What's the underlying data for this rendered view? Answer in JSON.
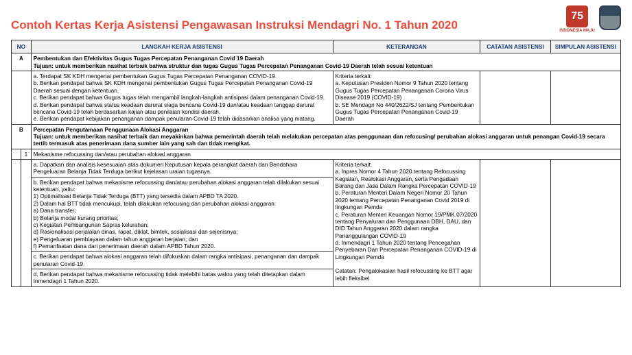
{
  "title": "Contoh Kertas Kerja Asistensi Pengawasan Instruksi Mendagri No. 1 Tahun 2020",
  "logo1_num": "75",
  "logo1_label": "INDONESIA MAJU",
  "headers": {
    "no": "NO",
    "langkah": "LANGKAH KERJA ASISTENSI",
    "keterangan": "KETERANGAN",
    "catatan": "CATATAN ASISTENSI",
    "simpulan": "SIMPULAN ASISTENSI"
  },
  "secA": {
    "no": "A",
    "title": "Pembentukan dan Efektivitas Gugus Tugas Percepatan Penanganan Covid 19 Daerah",
    "tujuan": "Tujuan: untuk memberikan nasihat terbaik bahwa struktur dan tugas Gugus Tugas Percepatan Penanganan Covid-19 Daerah telah sesuai ketentuan",
    "body_a": "a. Terdapat SK KDH mengenai pembentukan Gugus Tugas Percepatan Penanganan COVID-19.",
    "body_b": "b. Berikan pendapat bahwa SK KDH mengenai pembentukan Gugus Tugas Percepatan Penanganan Covid-19 Daerah sesuai dengan ketentuan.",
    "body_c": "c. Berikan pendapat bahwa Gugus tugas telah mengambil langkah-langkah antisipasi dalam penanganan Covid-19.",
    "body_d": "d. Berikan pendapat bahwa status keadaan darurat siaga bencana Covid-19 dan/atau keadaan tanggap darurat bencana Covid-19 telah berdasarkan kajian atau penilaian kondisi daerah.",
    "body_e": "e. Berikan pendapat kebijakan penanganan dampak penularan Covid-19 telah didasarkan analisa yang matang.",
    "ket_title": "Kriteria terkait:",
    "ket_a": "a. Keputusan Presiden Nomor 9 Tahun 2020 tentang Gugus Tugas Percepatan Penanganan Corona Virus Disease 2019 (COVID-19)",
    "ket_b": "b. SE Mendagri No 440/2622/SJ tentang Pembentukan Gugus Tugas Percepatan Penanganan Covid-19 Daerah"
  },
  "secB": {
    "no": "B",
    "title": "Percepatan Pengutamaan Penggunaan Alokasi Anggaran",
    "tujuan": "Tujuan: untuk memberikan nasihat terbaik dan meyakinkan bahwa pemerintah daerah telah melakukan percepatan atas penggunaan dan refocusing/ perubahan alokasi anggaran untuk penangan Covid-19 secara tertib termasuk atas penerimaan dana sumber lain yang sah dan tidak mengikat."
  },
  "row1": {
    "num": "1",
    "title": "Mekanisme refocussing dan/atau perubahan alokasi anggaran",
    "a": "a. Dapatkan dan analisis kesesuaian atas dokumen Keputusan kepala perangkat daerah dan Bendahara Pengeluaran Belanja Tidak Terduga berikut kejelasan uraian tugasnya.",
    "b_head": "b. Berikan pendapat bahwa mekanisme refocussing dan/atau perubahan alokasi anggaran telah dilakukan sesuai ketentuan, yaitu:",
    "b1": "1) Optimalisasi Belanja Tidak Terduga (BTT) yang tersedia dalam APBD TA 2020.",
    "b2": "2) Dalam hal BTT tidak mencukupi, telah dilakukan refocusing dan perubahan alokasi anggaran:",
    "ba": "a) Dana transfer;",
    "bb": "b) Belanja modal kurang prioritas;",
    "bc": "c) Kegiatan Pembangunan Sapras kelurahan;",
    "bd": "d) Rasionalisasi perjalalan dinas, rapat, diklat, bimtek, sosialisasi dan sejenisnya;",
    "be": "e) Pengeluaran pembiayaan dalam tahun anggaran berjalan; dan",
    "bf": "f) Pemanfaatan dana dari penerimaan daerah dalam APBD Tahun 2020.",
    "c": "c. Berikan pendapat bahwa alokasi anggaran telah difokuskan dalam rangka antisipasi, penanganan dan dampak penularan Covid-19.",
    "d": "d. Berikan pendapat bahwa mekanisme refocussing tidak melebihi batas waktu yang telah ditetapkan dalam Inmendagri 1 Tahun 2020.",
    "ket_title": "Kriteria terkait:",
    "ket_a": "a. Inpres Nomor 4 Tahun 2020 tentang Refocussing Kegiatan, Realokasi Anggaran, serta Pengadaan Barang dan Jasa Dalam Rangka Percepatan COVID-19",
    "ket_b": "b. Peraturan Menteri Dalam Negeri Nomor 20 Tahun 2020 tentang Percepatan Penanganan Covid 2019 di lingkungan Pemda",
    "ket_c": "c. Peraturan Menteri Keuangan Nomor 19/PMK.07/2020 tentang Penyaluran dan Penggunaan DBH, DAU, dan DID Tahun Anggaran 2020 dalam rangka Penanggulangan COVID-19",
    "ket_d": "d. Inmendagri 1 Tahun 2020 tentang Pencegahan Penyebaran Dan Percepatan Penanganan COVID-19 di Lingkungan Pemda",
    "ket_note": "Catatan: Pengalokasian hasil refocussing ke BTT agar lebih fleksibel"
  }
}
